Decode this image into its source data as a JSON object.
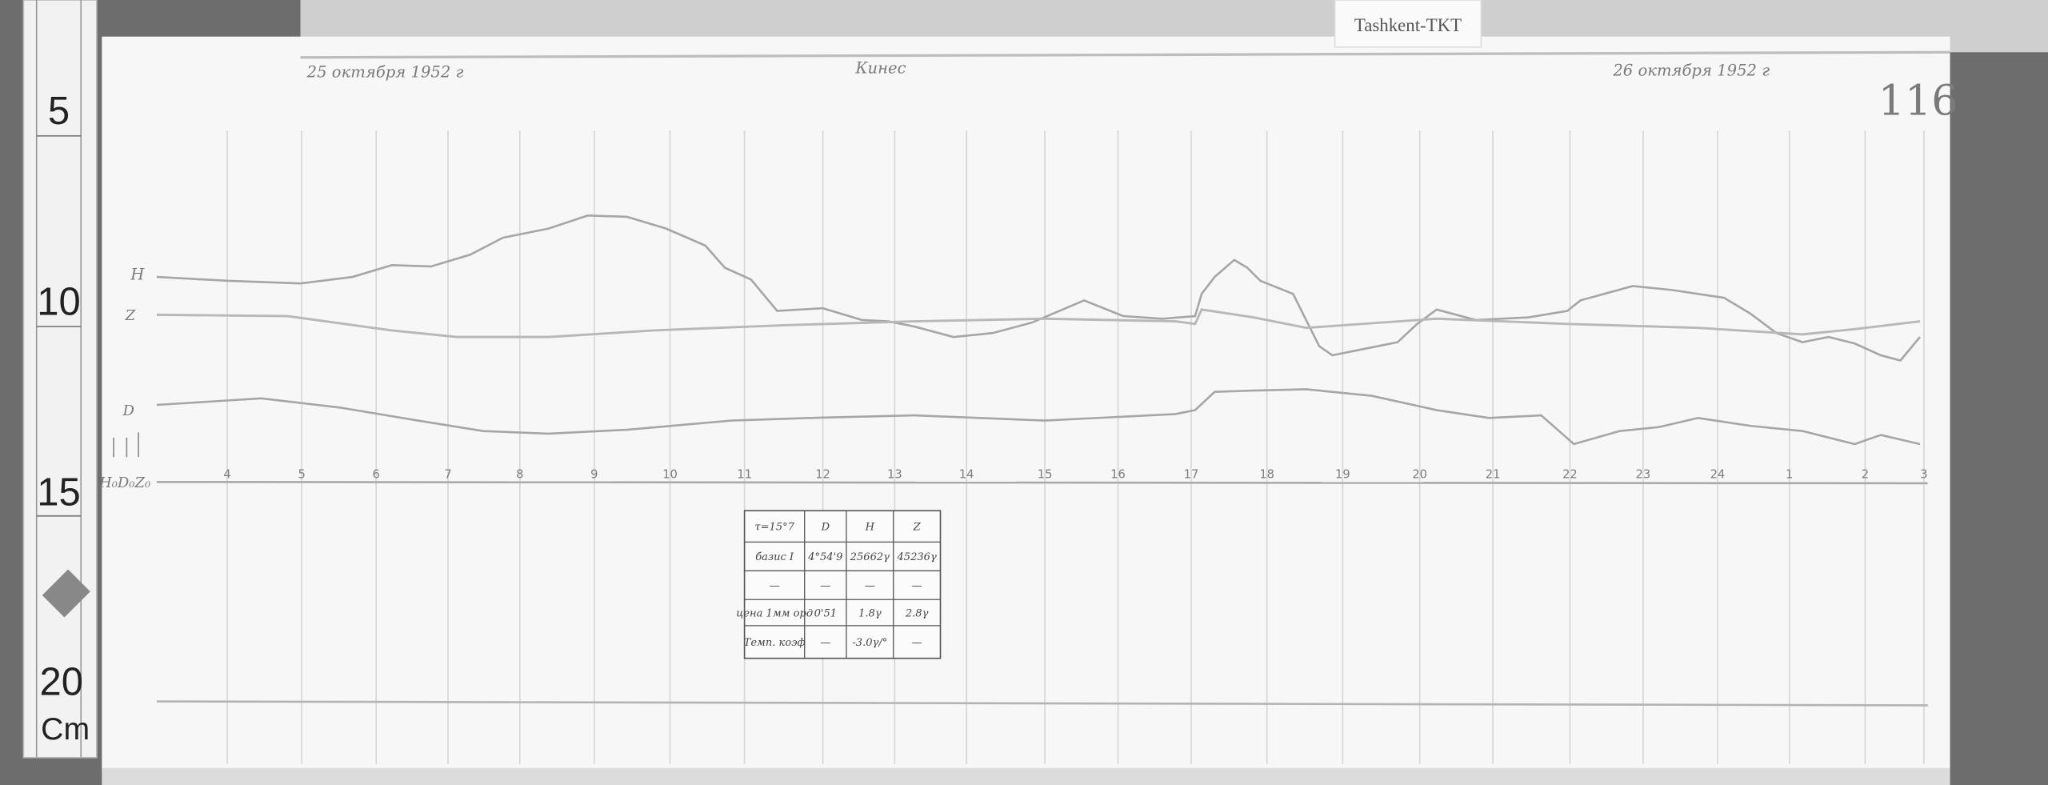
{
  "label_tag": "Tashkent-TKT",
  "header": {
    "date_left": "25 октября 1952 г",
    "center": "Кинес",
    "date_right": "26 октября 1952 г",
    "sheet_number": "116"
  },
  "traces": {
    "h_label": "H",
    "z_label": "Z",
    "d_label": "D",
    "baseline_label": "H₀D₀Z₀"
  },
  "hours": [
    "4",
    "5",
    "6",
    "7",
    "8",
    "9",
    "10",
    "11",
    "12",
    "13",
    "14",
    "15",
    "16",
    "17",
    "18",
    "19",
    "20",
    "21",
    "22",
    "23",
    "24",
    "1",
    "2",
    "3"
  ],
  "table": {
    "header": [
      "τ=15°7",
      "D",
      "H",
      "Z"
    ],
    "rows": [
      [
        "базис I",
        "4°54'9",
        "25662γ",
        "45236γ"
      ],
      [
        "—",
        "—",
        "—",
        "—"
      ],
      [
        "цена 1мм орд",
        "0'51",
        "1.8γ",
        "2.8γ"
      ],
      [
        "Темп. коэф",
        "—",
        "-3.0γ/°",
        "—"
      ]
    ]
  },
  "ruler": {
    "marks": [
      "5",
      "10",
      "15",
      "20"
    ],
    "unit": "Cm"
  },
  "colors": {
    "paper": "#f7f7f7",
    "trace": "#a8a8a8",
    "background": "#6f6f6f"
  }
}
